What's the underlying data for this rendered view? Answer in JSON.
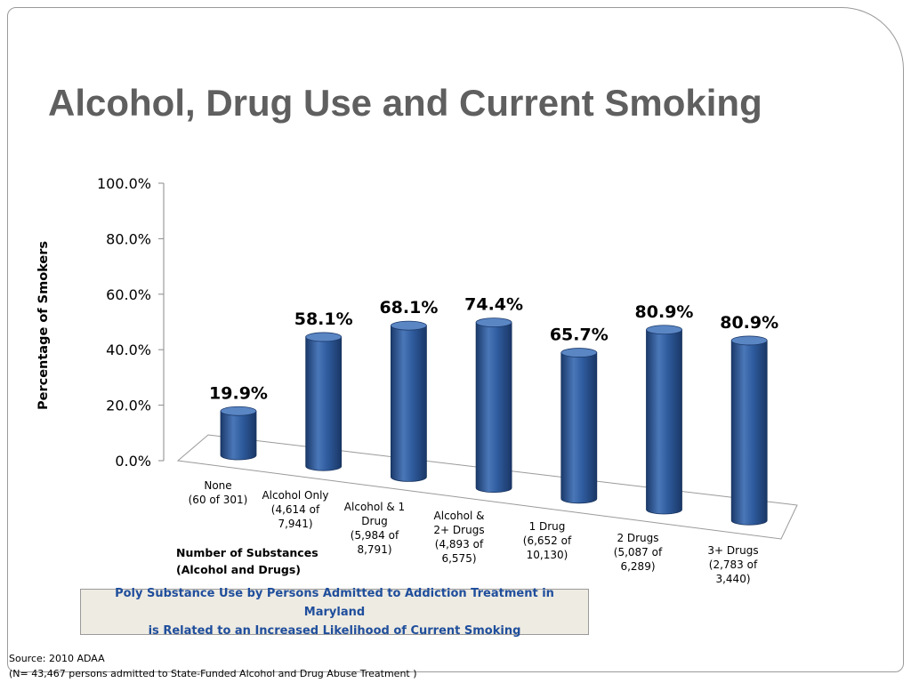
{
  "slide": {
    "title": "Alcohol, Drug Use and Current Smoking"
  },
  "chart_data": {
    "type": "bar",
    "title": "",
    "ylabel": "Percentage  of Smokers",
    "xlabel": "Number of Substances\n(Alcohol and Drugs)",
    "ylim": [
      0,
      100
    ],
    "yticks": [
      "0.0%",
      "20.0%",
      "40.0%",
      "60.0%",
      "80.0%",
      "100.0%"
    ],
    "categories": [
      "None\n(60 of 301)",
      "Alcohol Only\n(4,614 of\n7,941)",
      "Alcohol &      1\nDrug\n(5,984 of\n8,791)",
      "Alcohol &\n2+ Drugs\n(4,893 of\n6,575)",
      "1 Drug\n(6,652 of\n10,130)",
      "2 Drugs\n(5,087 of\n6,289)",
      "3+ Drugs\n(2,783 of\n3,440)"
    ],
    "values": [
      19.9,
      58.1,
      68.1,
      74.4,
      65.7,
      80.9,
      80.9
    ],
    "data_labels": [
      "19.9%",
      "58.1%",
      "68.1%",
      "74.4%",
      "65.7%",
      "80.9%",
      "80.9%"
    ],
    "grid": false,
    "colors": {
      "bar": "#2e5a9c",
      "bar_dark": "#1b3a6b",
      "bar_light": "#5b86c4"
    }
  },
  "callout": {
    "text": "Poly Substance Use by Persons Admitted to Addiction Treatment in Maryland\nis Related to an Increased Likelihood of Current Smoking"
  },
  "source": {
    "text": "Source: 2010 ADAA\n(N= 43,467 persons admitted to State-Funded Alcohol and Drug Abuse Treatment )"
  }
}
